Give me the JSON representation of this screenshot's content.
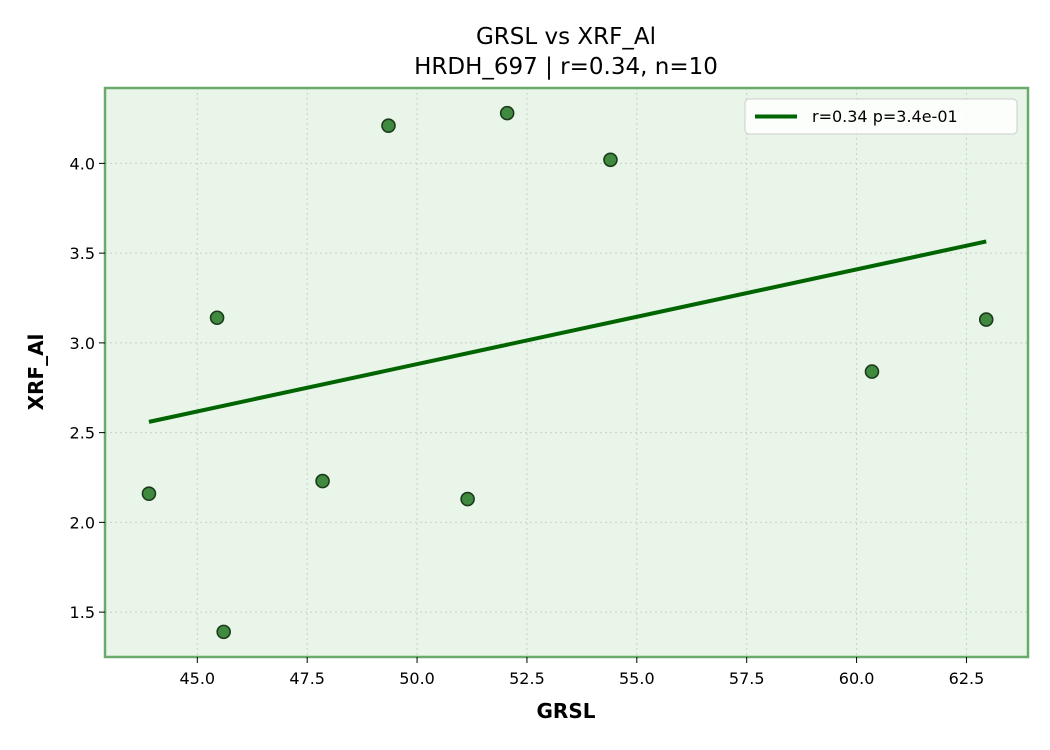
{
  "chart_data": {
    "type": "scatter",
    "title": "GRSL vs XRF_Al",
    "subtitle": "HRDH_697 | r=0.34, n=10",
    "xlabel": "GRSL",
    "ylabel": "XRF_Al",
    "xlim": [
      42.9,
      63.9
    ],
    "ylim": [
      1.25,
      4.42
    ],
    "xticks": [
      "45.0",
      "47.5",
      "50.0",
      "52.5",
      "55.0",
      "57.5",
      "60.0",
      "62.5"
    ],
    "yticks": [
      "1.5",
      "2.0",
      "2.5",
      "3.0",
      "3.5",
      "4.0"
    ],
    "grid": true,
    "legend_position": "top-right",
    "points": [
      {
        "x": 43.9,
        "y": 2.16
      },
      {
        "x": 45.45,
        "y": 3.14
      },
      {
        "x": 45.6,
        "y": 1.39
      },
      {
        "x": 47.85,
        "y": 2.23
      },
      {
        "x": 49.35,
        "y": 4.21
      },
      {
        "x": 51.15,
        "y": 2.13
      },
      {
        "x": 52.05,
        "y": 4.28
      },
      {
        "x": 54.4,
        "y": 4.02
      },
      {
        "x": 60.35,
        "y": 2.84
      },
      {
        "x": 62.95,
        "y": 3.13
      }
    ],
    "fit_line": {
      "label": "r=0.34  p=3.4e-01",
      "x": [
        43.9,
        62.95
      ],
      "y": [
        2.56,
        3.565
      ]
    },
    "colors": {
      "plot_bg": "#e8f5e8",
      "frame": "#6aaa6a",
      "point_fill": "#3f8a3f",
      "point_edge": "#1c3a1c",
      "fit_line": "#006400",
      "grid": "#c8d2c8"
    }
  }
}
